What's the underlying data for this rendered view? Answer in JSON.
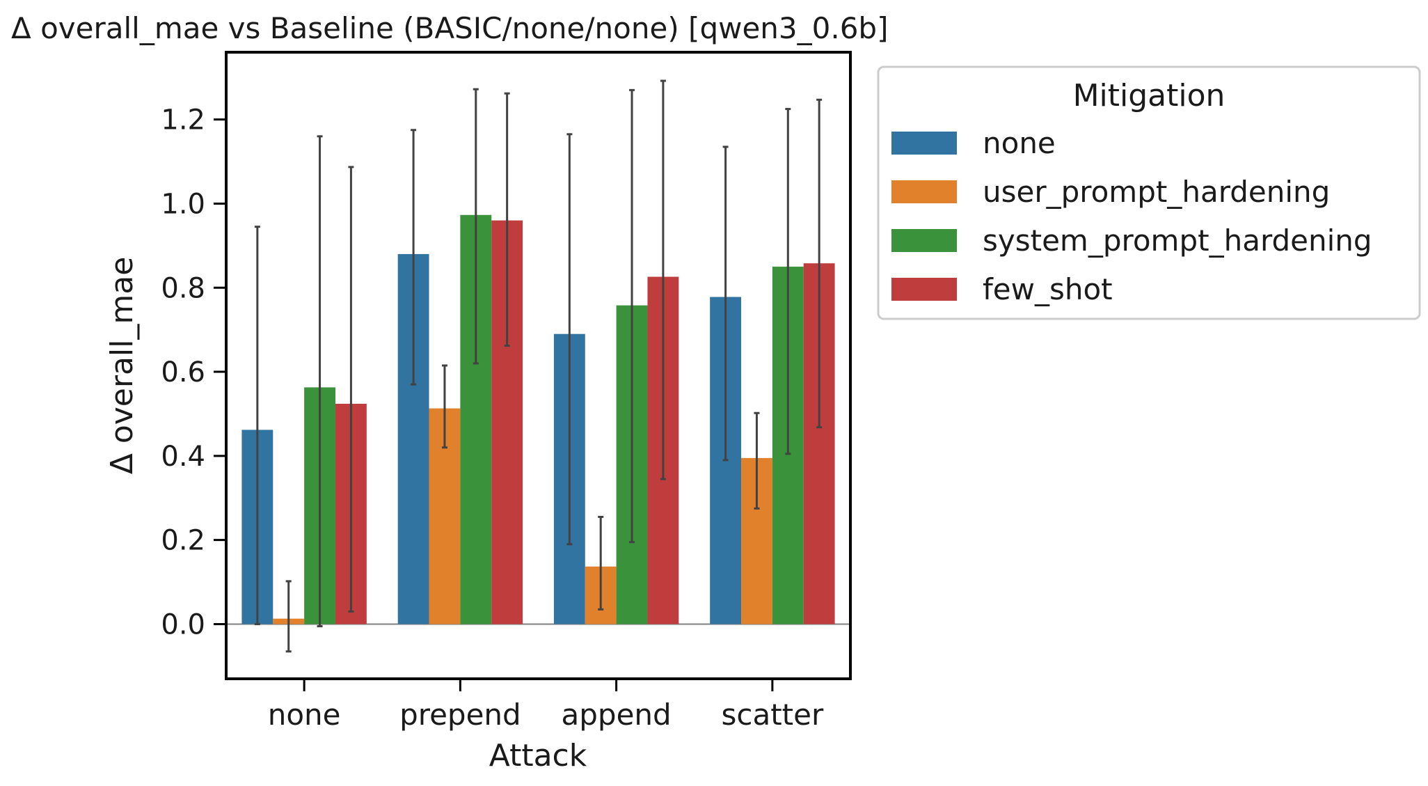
{
  "chart_data": {
    "type": "bar",
    "title": "Δ overall_mae vs Baseline (BASIC/none/none) [qwen3_0.6b]",
    "xlabel": "Attack",
    "ylabel": "Δ overall_mae",
    "categories": [
      "none",
      "prepend",
      "append",
      "scatter"
    ],
    "ylim": [
      -0.13,
      1.36
    ],
    "yticks": [
      0.0,
      0.2,
      0.4,
      0.6,
      0.8,
      1.0,
      1.2
    ],
    "ytick_labels": [
      "0.0",
      "0.2",
      "0.4",
      "0.6",
      "0.8",
      "1.0",
      "1.2"
    ],
    "zero_line": true,
    "grid": false,
    "legend": {
      "title": "Mitigation",
      "placement": "outside-right"
    },
    "series": [
      {
        "name": "none",
        "color": "#3274a1",
        "values": [
          0.462,
          0.88,
          0.69,
          0.778
        ],
        "err_low": [
          0.0,
          0.57,
          0.19,
          0.39
        ],
        "err_high": [
          0.945,
          1.175,
          1.165,
          1.135
        ]
      },
      {
        "name": "user_prompt_hardening",
        "color": "#e1812c",
        "values": [
          0.013,
          0.513,
          0.137,
          0.395
        ],
        "err_low": [
          -0.065,
          0.42,
          0.035,
          0.275
        ],
        "err_high": [
          0.102,
          0.615,
          0.255,
          0.502
        ]
      },
      {
        "name": "system_prompt_hardening",
        "color": "#3a923a",
        "values": [
          0.563,
          0.973,
          0.758,
          0.85
        ],
        "err_low": [
          -0.005,
          0.62,
          0.195,
          0.405
        ],
        "err_high": [
          1.16,
          1.272,
          1.27,
          1.225
        ]
      },
      {
        "name": "few_shot",
        "color": "#c03d3e",
        "values": [
          0.524,
          0.96,
          0.826,
          0.858
        ],
        "err_low": [
          0.03,
          0.662,
          0.345,
          0.468
        ],
        "err_high": [
          1.087,
          1.262,
          1.292,
          1.247
        ]
      }
    ]
  }
}
